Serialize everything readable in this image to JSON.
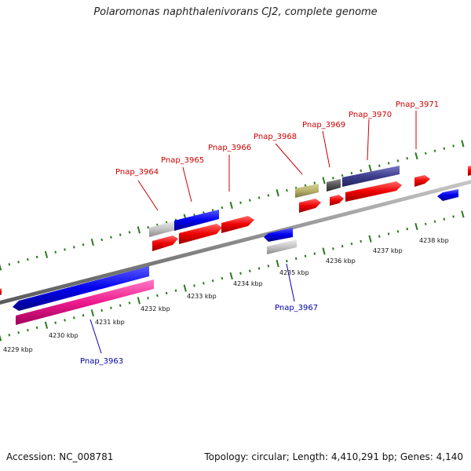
{
  "title": "Polaromonas naphthalenivorans CJ2, complete genome",
  "footer": {
    "accession": "Accession: NC_008781",
    "summary": "Topology: circular; Length: 4,410,291 bp; Genes: 4,140"
  },
  "colors": {
    "top_label": "#cc0000",
    "bottom_label": "#0000aa",
    "tick": "#2a7a1e",
    "backbone": "#888888"
  },
  "kbp_ticks": [
    {
      "label": "4229 kbp",
      "kbp": 4229
    },
    {
      "label": "4230 kbp",
      "kbp": 4230
    },
    {
      "label": "4231 kbp",
      "kbp": 4231
    },
    {
      "label": "4232 kbp",
      "kbp": 4232
    },
    {
      "label": "4233 kbp",
      "kbp": 4233
    },
    {
      "label": "4234 kbp",
      "kbp": 4234
    },
    {
      "label": "4235 kbp",
      "kbp": 4235
    },
    {
      "label": "4236 kbp",
      "kbp": 4236
    },
    {
      "label": "4237 kbp",
      "kbp": 4237
    },
    {
      "label": "4238 kbp",
      "kbp": 4238
    }
  ],
  "gene_labels": [
    {
      "text": "Pnap_3963",
      "side": "bottom"
    },
    {
      "text": "Pnap_3964",
      "side": "top"
    },
    {
      "text": "Pnap_3965",
      "side": "top"
    },
    {
      "text": "Pnap_3966",
      "side": "top"
    },
    {
      "text": "Pnap_3967",
      "side": "bottom"
    },
    {
      "text": "Pnap_3968",
      "side": "top"
    },
    {
      "text": "Pnap_3969",
      "side": "top"
    },
    {
      "text": "Pnap_3970",
      "side": "top"
    },
    {
      "text": "Pnap_3971",
      "side": "top"
    }
  ]
}
